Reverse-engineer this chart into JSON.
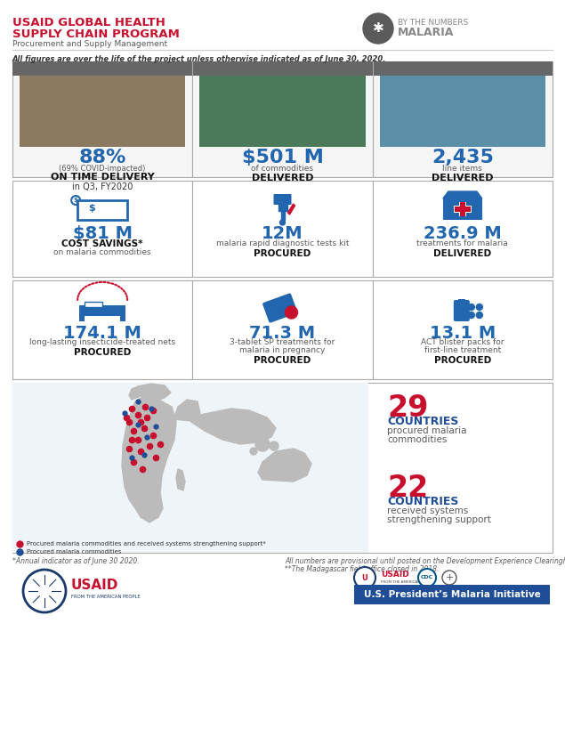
{
  "title_line1": "USAID GLOBAL HEALTH",
  "title_line2": "SUPPLY CHAIN PROGRAM",
  "subtitle": "Procurement and Supply Management",
  "by_the_numbers": "BY THE NUMBERS",
  "malaria_word": "MALARIA",
  "note_line": "All figures are over the life of the project unless otherwise indicated as of June 30, 2020.",
  "red_color": "#C8102E",
  "blue_color": "#1F4E96",
  "light_blue": "#2166AE",
  "dark_blue": "#003087",
  "gray_color": "#808080",
  "dark_gray": "#595959",
  "medium_gray": "#737373",
  "light_gray": "#D9D9D9",
  "border_color": "#AAAAAA",
  "row1": [
    {
      "big_text": "88%",
      "sub_text": "(69% COVID-impacted)",
      "bold_text": "ON TIME DELIVERY",
      "small_text": "in Q3, FY2020"
    },
    {
      "big_text": "$501 M",
      "sub_text": "of commodities",
      "bold_text": "DELIVERED",
      "small_text": ""
    },
    {
      "big_text": "2,435",
      "sub_text": "line items",
      "bold_text": "DELIVERED",
      "small_text": ""
    }
  ],
  "row2": [
    {
      "big_text": "$81 M",
      "label1": "COST SAVINGS*",
      "label2": "on malaria commodities"
    },
    {
      "big_text": "12M",
      "label1": "malaria rapid diagnostic tests kit",
      "label2": "PROCURED"
    },
    {
      "big_text": "236.9 M",
      "label1": "treatments for malaria",
      "label2": "DELIVERED"
    }
  ],
  "row3": [
    {
      "big_text": "174.1 M",
      "label1": "long-lasting insecticide-treated nets",
      "label2": "PROCURED"
    },
    {
      "big_text": "71.3 M",
      "label1": "3-tablet SP treatments for\nmalaria in pregnancy",
      "label2": "PROCURED"
    },
    {
      "big_text": "13.1 M",
      "label1": "ACT blister packs for\nfirst-line treatment",
      "label2": "PROCURED"
    }
  ],
  "map_stats": [
    {
      "number": "29",
      "label1": "COUNTRIES",
      "label2": "procured malaria",
      "label3": "commodities"
    },
    {
      "number": "22",
      "label1": "COUNTRIES",
      "label2": "received systems",
      "label3": "strengthening support"
    }
  ],
  "legend1": "Procured malaria commodities and received systems strengthening support*",
  "legend2": "Procured malaria commodities",
  "legend1_color": "#C8102E",
  "legend2_color": "#1F4E96",
  "footer_note1": "*Annual indicator as of June 30 2020.",
  "footer_note2": "All numbers are provisional until posted on the Development Experience Clearinghouse.",
  "footer_note3": "**The Madagascar field office closed in 2018.",
  "footer_banner_color": "#1F4E96",
  "footer_banner_text": "U.S. President’s Malaria Initiative"
}
